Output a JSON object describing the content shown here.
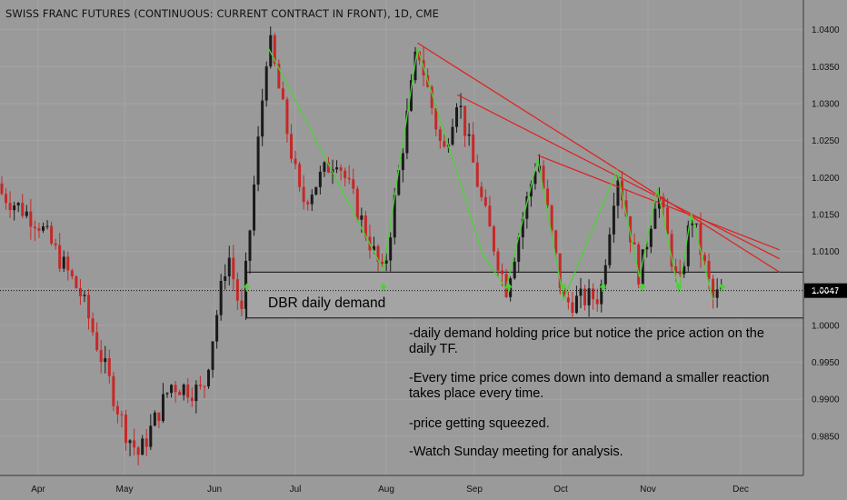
{
  "header": {
    "title": "SWISS FRANC FUTURES (CONTINUOUS: CURRENT CONTRACT IN FRONT), 1D, CME"
  },
  "annotations": {
    "zone_label": "DBR daily demand",
    "notes": [
      "-daily demand holding price but notice the price action on the daily TF.",
      "-Every time price comes down into demand a smaller reaction takes place every time.",
      "-price getting squeezed.",
      "-Watch Sunday meeting for analysis."
    ]
  },
  "colors": {
    "background": "#9a9a9a",
    "up_candle": "#1a1a1a",
    "down_candle": "#c62828",
    "zigzag": "#4cd137",
    "trendline": "#e02020",
    "demand_zone": "#a4a4a4",
    "price_tag": "#000000"
  },
  "chart_data": {
    "type": "candlestick",
    "title": "SWISS FRANC FUTURES (CONTINUOUS: CURRENT CONTRACT IN FRONT), 1D, CME",
    "x_tick_labels": [
      "Apr",
      "May",
      "Jun",
      "Jul",
      "Aug",
      "Sep",
      "Oct",
      "Nov",
      "Dec"
    ],
    "y_tick_labels": [
      "1.0400",
      "1.0350",
      "1.0300",
      "1.0250",
      "1.0200",
      "1.0150",
      "1.0100",
      "1.0050",
      "1.0000",
      "0.9950",
      "0.9900",
      "0.9850"
    ],
    "ylim": [
      0.9808,
      1.0418
    ],
    "last_price": "1.0047",
    "demand_zone": {
      "low": 1.001,
      "high": 1.0072,
      "label": "DBR daily demand"
    },
    "pivots": [
      {
        "date": "Mar 14",
        "high": 1.0192
      },
      {
        "date": "Apr 01",
        "low": 1.014
      },
      {
        "date": "Apr 16",
        "low": 1.004
      },
      {
        "date": "May 01",
        "low": 0.986
      },
      {
        "date": "May 06",
        "low": 0.9824
      },
      {
        "date": "May 17",
        "high": 0.992
      },
      {
        "date": "May 28",
        "low": 0.991
      },
      {
        "date": "Jun 06",
        "high": 1.01
      },
      {
        "date": "Jun 11",
        "low": 1.001
      },
      {
        "date": "Jun 21",
        "high": 1.0392
      },
      {
        "date": "Jul 03",
        "low": 1.0165
      },
      {
        "date": "Jul 15",
        "high": 1.023
      },
      {
        "date": "Jul 31",
        "low": 1.0065
      },
      {
        "date": "Aug 12",
        "high": 1.0378
      },
      {
        "date": "Aug 21",
        "low": 1.023
      },
      {
        "date": "Aug 26",
        "high": 1.0312
      },
      {
        "date": "Sep 04",
        "low": 1.016
      },
      {
        "date": "Sep 12",
        "low": 1.005
      },
      {
        "date": "Sep 23",
        "high": 1.023
      },
      {
        "date": "Oct 02",
        "low": 1.003
      },
      {
        "date": "Oct 15",
        "low": 1.004
      },
      {
        "date": "Oct 21",
        "high": 1.021
      },
      {
        "date": "Oct 29",
        "low": 1.0065
      },
      {
        "date": "Nov 04",
        "high": 1.0185
      },
      {
        "date": "Nov 11",
        "low": 1.0045
      },
      {
        "date": "Nov 15",
        "high": 1.0152
      },
      {
        "date": "Nov 22",
        "low": 1.0035
      },
      {
        "date": "Nov 25",
        "close": 1.0047
      }
    ],
    "zigzag": [
      {
        "date": "Jun 21",
        "price": 1.0375
      },
      {
        "date": "Jul 31",
        "price": 1.0075
      },
      {
        "date": "Aug 12",
        "price": 1.0375
      },
      {
        "date": "Sep 04",
        "price": 1.0095
      },
      {
        "date": "Sep 12",
        "price": 1.005
      },
      {
        "date": "Sep 23",
        "price": 1.0225
      },
      {
        "date": "Oct 02",
        "price": 1.0035
      },
      {
        "date": "Oct 21",
        "price": 1.021
      },
      {
        "date": "Oct 29",
        "price": 1.0065
      },
      {
        "date": "Nov 04",
        "price": 1.0185
      },
      {
        "date": "Nov 11",
        "price": 1.0045
      },
      {
        "date": "Nov 15",
        "price": 1.0152
      },
      {
        "date": "Nov 22",
        "price": 1.0035
      }
    ],
    "trendlines": [
      {
        "from": {
          "date": "Aug 12",
          "price": 1.0382
        },
        "to": {
          "date": "Dec 14",
          "price": 1.0072
        }
      },
      {
        "from": {
          "date": "Aug 26",
          "price": 1.0312
        },
        "to": {
          "date": "Dec 14",
          "price": 1.009
        }
      },
      {
        "from": {
          "date": "Sep 23",
          "price": 1.023
        },
        "to": {
          "date": "Dec 14",
          "price": 1.0102
        }
      }
    ],
    "demand_arrows": [
      "Jun 13",
      "Jul 31",
      "Sep 13",
      "Oct 02",
      "Oct 16",
      "Oct 30",
      "Nov 11",
      "Nov 25"
    ]
  }
}
